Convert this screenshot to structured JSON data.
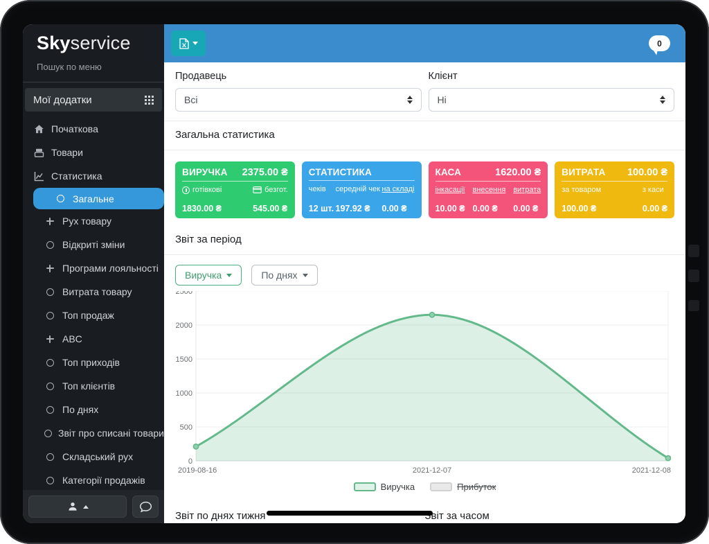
{
  "sidebar": {
    "logo_bold": "Sky",
    "logo_light": "service",
    "search_placeholder": "Пошук по меню",
    "apps_label": "Мої додатки",
    "menu": [
      {
        "label": "Початкова",
        "icon": "home",
        "indent": 0
      },
      {
        "label": "Товари",
        "icon": "goods",
        "indent": 0
      },
      {
        "label": "Статистика",
        "icon": "stats",
        "indent": 0
      },
      {
        "label": "Загальне",
        "icon": "circle",
        "indent": 1,
        "active": true
      },
      {
        "label": "Рух товару",
        "icon": "plus",
        "indent": 1
      },
      {
        "label": "Відкриті зміни",
        "icon": "circle",
        "indent": 1
      },
      {
        "label": "Програми лояльності",
        "icon": "plus",
        "indent": 1
      },
      {
        "label": "Витрата товару",
        "icon": "circle",
        "indent": 1
      },
      {
        "label": "Топ продаж",
        "icon": "circle",
        "indent": 1
      },
      {
        "label": "ABC",
        "icon": "plus",
        "indent": 1
      },
      {
        "label": "Топ приходів",
        "icon": "circle",
        "indent": 1
      },
      {
        "label": "Топ клієнтів",
        "icon": "circle",
        "indent": 1
      },
      {
        "label": "По днях",
        "icon": "circle",
        "indent": 1
      },
      {
        "label": "Звіт про списані товари",
        "icon": "circle",
        "indent": 1
      },
      {
        "label": "Складський рух",
        "icon": "circle",
        "indent": 1
      },
      {
        "label": "Категорії продажів",
        "icon": "circle",
        "indent": 1
      }
    ]
  },
  "topbar": {
    "badge_count": "0",
    "accent_color": "#3a8ccd",
    "export_color": "#18a7b5"
  },
  "filters": {
    "seller_label": "Продавець",
    "seller_value": "Всі",
    "client_label": "Клієнт",
    "client_value": "Ні"
  },
  "stats": {
    "title": "Загальна статистика",
    "cards": [
      {
        "title": "ВИРУЧКА",
        "total": "2375.00 ₴",
        "color": "#2ecb71",
        "columns": [
          {
            "label": "готівкові",
            "icon": "cash-icon",
            "value": "1830.00 ₴",
            "link": false
          },
          {
            "label": "безгот.",
            "icon": "card-icon",
            "value": "545.00 ₴",
            "link": false
          }
        ]
      },
      {
        "title": "СТАТИСТИКА",
        "total": "",
        "color": "#3aa5e8",
        "columns": [
          {
            "label": "чеків",
            "value": "12 шт.",
            "link": false
          },
          {
            "label": "середній чек",
            "value": "197.92 ₴",
            "link": false
          },
          {
            "label": "на складі",
            "value": "0.00 ₴",
            "link": true
          }
        ]
      },
      {
        "title": "КАСА",
        "total": "1620.00 ₴",
        "color": "#f4537a",
        "columns": [
          {
            "label": "інкасації",
            "value": "10.00 ₴",
            "link": true
          },
          {
            "label": "внесення",
            "value": "0.00 ₴",
            "link": true
          },
          {
            "label": "витрата",
            "value": "0.00 ₴",
            "link": true
          }
        ]
      },
      {
        "title": "ВИТРАТА",
        "total": "100.00 ₴",
        "color": "#efb90f",
        "columns": [
          {
            "label": "за товаром",
            "value": "100.00 ₴",
            "link": false
          },
          {
            "label": "з каси",
            "value": "0.00 ₴",
            "link": false
          }
        ]
      }
    ]
  },
  "period": {
    "title": "Звіт за період",
    "metric_button": "Виручка",
    "grouping_button": "По днях"
  },
  "chart_data": {
    "type": "area",
    "title": "Звіт за період",
    "x": [
      "2019-08-16",
      "2021-12-07",
      "2021-12-08"
    ],
    "x_positions": [
      0,
      0.5,
      1
    ],
    "series": [
      {
        "name": "Виручка",
        "values": [
          210,
          2150,
          40
        ],
        "color": "#63b98a",
        "disabled": false
      },
      {
        "name": "Прибуток",
        "values": null,
        "color": "#d2d2d2",
        "disabled": true
      }
    ],
    "ylim": [
      0,
      2500
    ],
    "yticks": [
      0,
      500,
      1000,
      1500,
      2000,
      2500
    ],
    "grid": true,
    "legend_position": "bottom"
  },
  "bottom": {
    "left_title": "Звіт по днях тижня",
    "right_title": "Звіт за часом"
  }
}
